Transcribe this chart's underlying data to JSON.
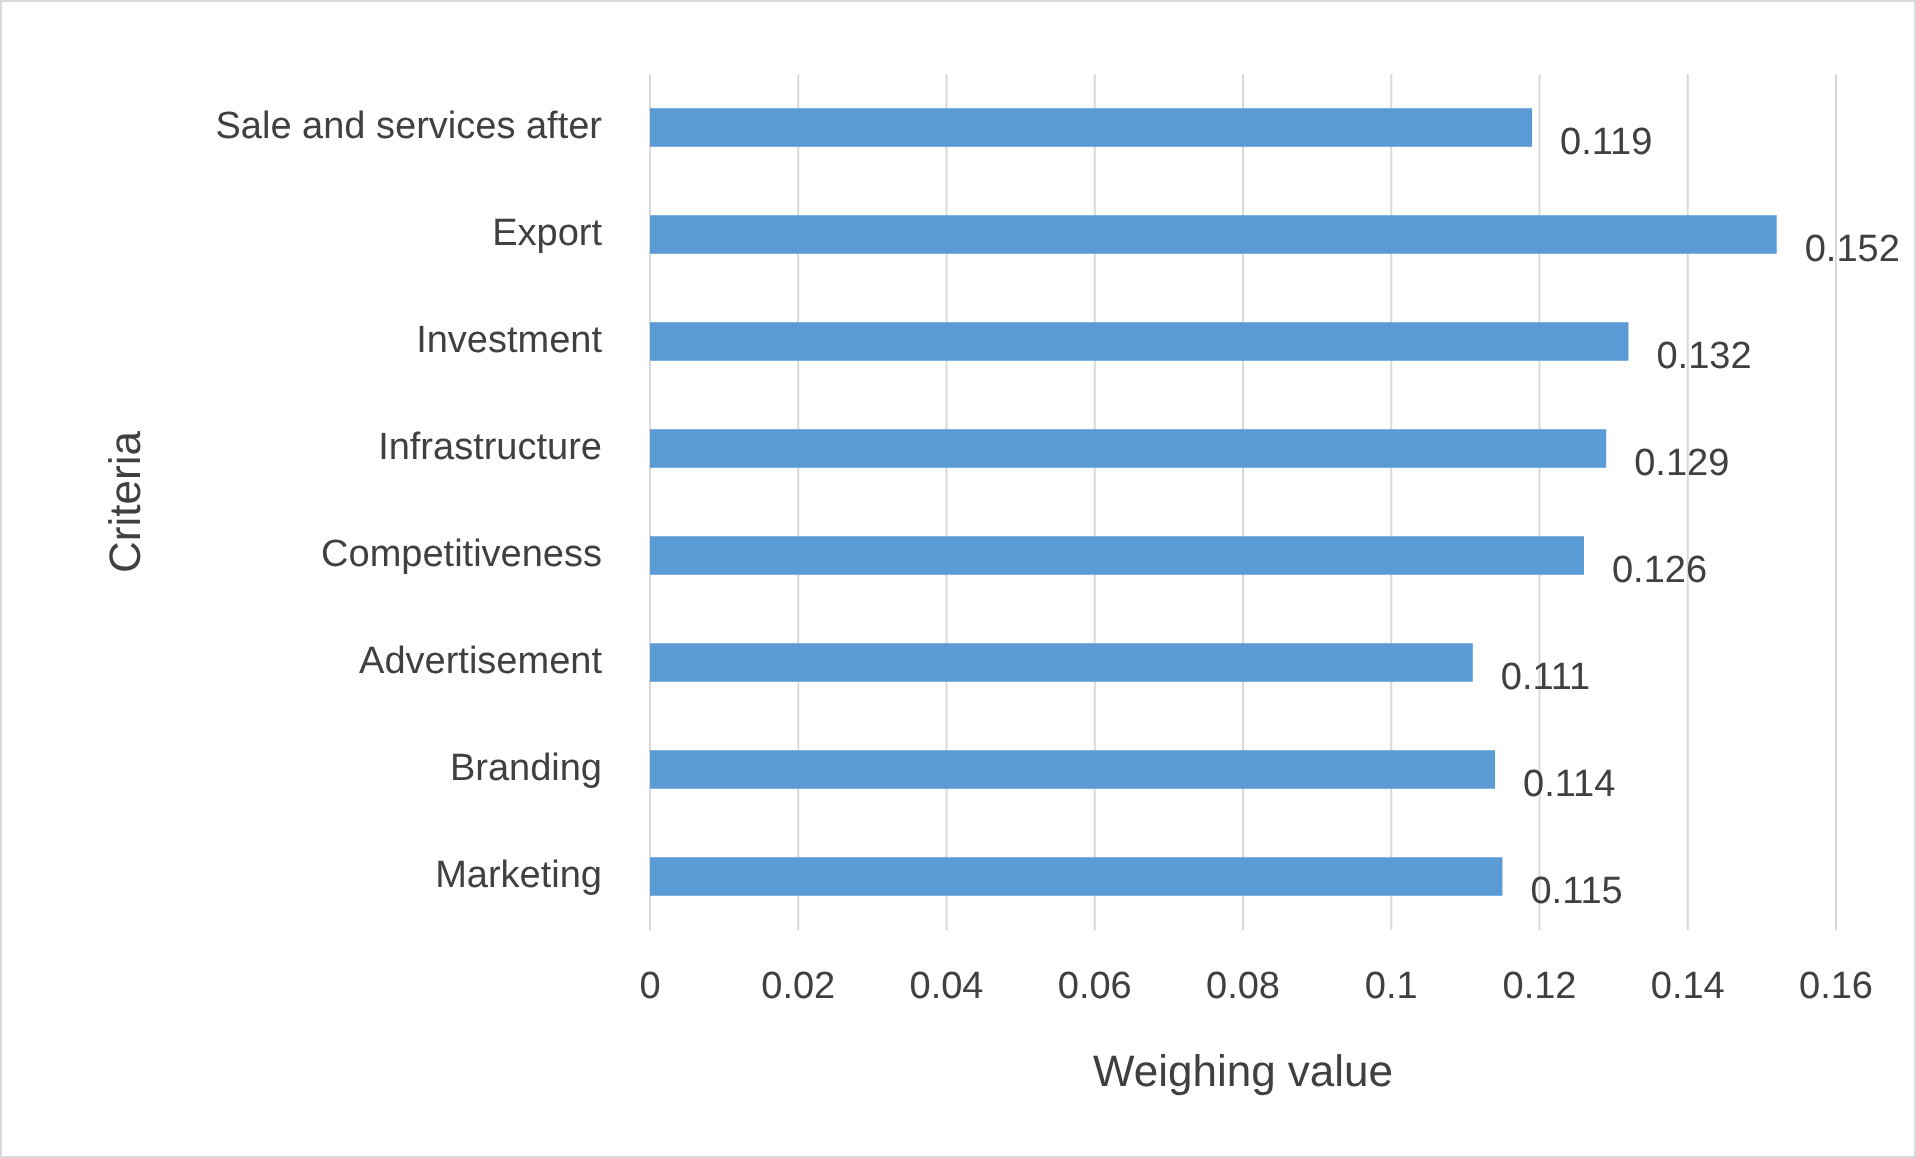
{
  "chart_data": {
    "type": "bar",
    "orientation": "horizontal",
    "xlabel": "Weighing value",
    "ylabel": "Criteria",
    "categories": [
      "Sale and services after",
      "Export",
      "Investment",
      "Infrastructure",
      "Competitiveness",
      "Advertisement",
      "Branding",
      "Marketing"
    ],
    "values": [
      0.119,
      0.152,
      0.132,
      0.129,
      0.126,
      0.111,
      0.114,
      0.115
    ],
    "color": "#5b9bd5",
    "xlim": [
      0,
      0.16
    ],
    "xticks": [
      0,
      0.02,
      0.04,
      0.06,
      0.08,
      0.1,
      0.12,
      0.14,
      0.16
    ],
    "grid": "x",
    "data_labels": true
  }
}
